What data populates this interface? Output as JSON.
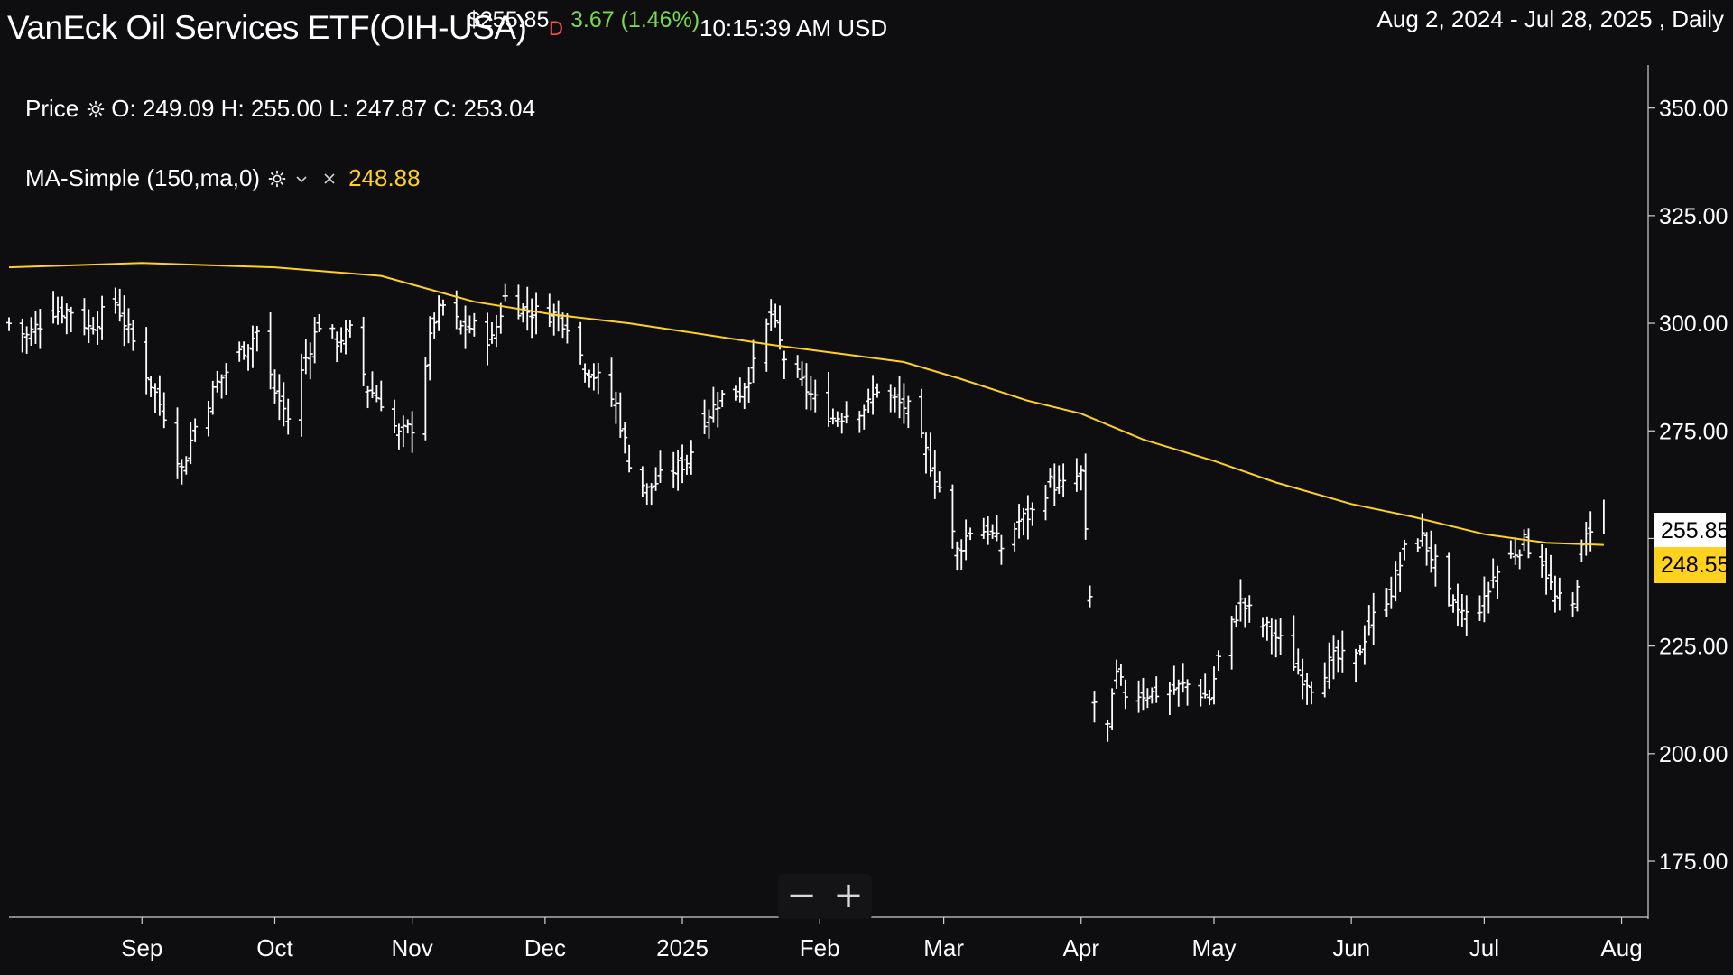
{
  "header": {
    "title": "VanEck Oil Services ETF(OIH-USA)",
    "price": "$255.85",
    "flag": "D",
    "change": "3.67 (1.46%)",
    "time": "10:15:39 AM USD",
    "range": "Aug 2, 2024 - Jul 28, 2025 , Daily"
  },
  "legend": {
    "price_label": "Price",
    "ohlc": "O: 249.09 H: 255.00 L: 247.87 C: 253.04",
    "ma_label": "MA-Simple (150,ma,0)",
    "ma_value": "248.88"
  },
  "tags": {
    "last": "255.85",
    "ma": "248.55"
  },
  "zoom": {
    "minus": "−",
    "plus": "+"
  },
  "colors": {
    "background": "#0e0e10",
    "bars": "#ffffff",
    "ma": "#ffd21f",
    "last_tag": "#ffffff",
    "ma_tag": "#ffd21f"
  },
  "chart_data": {
    "type": "line",
    "ylim": [
      162,
      360
    ],
    "y_ticks": [
      350,
      325,
      300,
      275,
      250,
      225,
      200,
      175
    ],
    "y_tick_labels": [
      "350.00",
      "325.00",
      "300.00",
      "275.00",
      "",
      "225.00",
      "200.00",
      "175.00"
    ],
    "x_ticks": [
      {
        "date": "2024-09-01",
        "label": "Sep"
      },
      {
        "date": "2024-10-01",
        "label": "Oct"
      },
      {
        "date": "2024-11-01",
        "label": "Nov"
      },
      {
        "date": "2024-12-01",
        "label": "Dec"
      },
      {
        "date": "2025-01-01",
        "label": "2025"
      },
      {
        "date": "2025-02-01",
        "label": "Feb"
      },
      {
        "date": "2025-03-01",
        "label": "Mar"
      },
      {
        "date": "2025-04-01",
        "label": "Apr"
      },
      {
        "date": "2025-05-01",
        "label": "May"
      },
      {
        "date": "2025-06-01",
        "label": "Jun"
      },
      {
        "date": "2025-07-01",
        "label": "Jul"
      },
      {
        "date": "2025-08-01",
        "label": "Aug"
      }
    ],
    "x_range": [
      "2024-08-02",
      "2025-08-07"
    ],
    "series": [
      {
        "kind": "ohlc_close_path",
        "points": [
          [
            "2024-08-02",
            300
          ],
          [
            "2024-08-06",
            297
          ],
          [
            "2024-08-12",
            303
          ],
          [
            "2024-08-16",
            303
          ],
          [
            "2024-08-20",
            299
          ],
          [
            "2024-08-26",
            305
          ],
          [
            "2024-08-29",
            298
          ],
          [
            "2024-09-03",
            286
          ],
          [
            "2024-09-06",
            279
          ],
          [
            "2024-09-10",
            266
          ],
          [
            "2024-09-13",
            276
          ],
          [
            "2024-09-18",
            286
          ],
          [
            "2024-09-23",
            293
          ],
          [
            "2024-09-27",
            298
          ],
          [
            "2024-10-01",
            284
          ],
          [
            "2024-10-04",
            278
          ],
          [
            "2024-10-08",
            292
          ],
          [
            "2024-10-11",
            300
          ],
          [
            "2024-10-15",
            296
          ],
          [
            "2024-10-18",
            298
          ],
          [
            "2024-10-22",
            285
          ],
          [
            "2024-10-25",
            282
          ],
          [
            "2024-10-29",
            274
          ],
          [
            "2024-11-01",
            276
          ],
          [
            "2024-11-06",
            301
          ],
          [
            "2024-11-08",
            304
          ],
          [
            "2024-11-12",
            299
          ],
          [
            "2024-11-15",
            299
          ],
          [
            "2024-11-19",
            296
          ],
          [
            "2024-11-22",
            306
          ],
          [
            "2024-11-26",
            303
          ],
          [
            "2024-12-03",
            302
          ],
          [
            "2024-12-06",
            300
          ],
          [
            "2024-12-10",
            290
          ],
          [
            "2024-12-13",
            287
          ],
          [
            "2024-12-17",
            281
          ],
          [
            "2024-12-20",
            268
          ],
          [
            "2024-12-24",
            261
          ],
          [
            "2024-12-27",
            264
          ],
          [
            "2025-01-02",
            268
          ],
          [
            "2025-01-06",
            278
          ],
          [
            "2025-01-10",
            283
          ],
          [
            "2025-01-14",
            284
          ],
          [
            "2025-01-17",
            290
          ],
          [
            "2025-01-21",
            302
          ],
          [
            "2025-01-24",
            292
          ],
          [
            "2025-01-28",
            286
          ],
          [
            "2025-01-31",
            282
          ],
          [
            "2025-02-04",
            278
          ],
          [
            "2025-02-07",
            279
          ],
          [
            "2025-02-12",
            281
          ],
          [
            "2025-02-14",
            285
          ],
          [
            "2025-02-18",
            282
          ],
          [
            "2025-02-21",
            280
          ],
          [
            "2025-02-25",
            270
          ],
          [
            "2025-02-28",
            262
          ],
          [
            "2025-03-04",
            247
          ],
          [
            "2025-03-07",
            252
          ],
          [
            "2025-03-11",
            252
          ],
          [
            "2025-03-14",
            248
          ],
          [
            "2025-03-18",
            254
          ],
          [
            "2025-03-21",
            256
          ],
          [
            "2025-03-25",
            263
          ],
          [
            "2025-03-28",
            262
          ],
          [
            "2025-04-01",
            265
          ],
          [
            "2025-04-03",
            236
          ],
          [
            "2025-04-04",
            212
          ],
          [
            "2025-04-07",
            206
          ],
          [
            "2025-04-09",
            218
          ],
          [
            "2025-04-11",
            214
          ],
          [
            "2025-04-15",
            214
          ],
          [
            "2025-04-17",
            214
          ],
          [
            "2025-04-22",
            215
          ],
          [
            "2025-04-25",
            216
          ],
          [
            "2025-04-30",
            213
          ],
          [
            "2025-05-02",
            222
          ],
          [
            "2025-05-07",
            235
          ],
          [
            "2025-05-12",
            230
          ],
          [
            "2025-05-16",
            226
          ],
          [
            "2025-05-21",
            218
          ],
          [
            "2025-05-23",
            216
          ],
          [
            "2025-05-28",
            222
          ],
          [
            "2025-06-02",
            222
          ],
          [
            "2025-06-05",
            230
          ],
          [
            "2025-06-10",
            238
          ],
          [
            "2025-06-13",
            247
          ],
          [
            "2025-06-17",
            250
          ],
          [
            "2025-06-20",
            244
          ],
          [
            "2025-06-24",
            234
          ],
          [
            "2025-06-27",
            232
          ],
          [
            "2025-07-01",
            235
          ],
          [
            "2025-07-03",
            241
          ],
          [
            "2025-07-07",
            246
          ],
          [
            "2025-07-10",
            249
          ],
          [
            "2025-07-14",
            245
          ],
          [
            "2025-07-17",
            236
          ],
          [
            "2025-07-21",
            234
          ],
          [
            "2025-07-23",
            247
          ],
          [
            "2025-07-25",
            253
          ],
          [
            "2025-07-28",
            256
          ]
        ]
      },
      {
        "kind": "moving_average",
        "points": [
          [
            "2024-08-02",
            313
          ],
          [
            "2024-09-01",
            314
          ],
          [
            "2024-10-01",
            313
          ],
          [
            "2024-10-25",
            311
          ],
          [
            "2024-11-15",
            305
          ],
          [
            "2024-12-03",
            302
          ],
          [
            "2024-12-20",
            300
          ],
          [
            "2025-01-02",
            298
          ],
          [
            "2025-01-21",
            295
          ],
          [
            "2025-02-05",
            293
          ],
          [
            "2025-02-20",
            291
          ],
          [
            "2025-03-05",
            287
          ],
          [
            "2025-03-20",
            282
          ],
          [
            "2025-04-01",
            279
          ],
          [
            "2025-04-15",
            273
          ],
          [
            "2025-05-01",
            268
          ],
          [
            "2025-05-15",
            263
          ],
          [
            "2025-06-01",
            258
          ],
          [
            "2025-06-15",
            255
          ],
          [
            "2025-07-01",
            251
          ],
          [
            "2025-07-15",
            249
          ],
          [
            "2025-07-28",
            248.5
          ]
        ]
      }
    ]
  }
}
